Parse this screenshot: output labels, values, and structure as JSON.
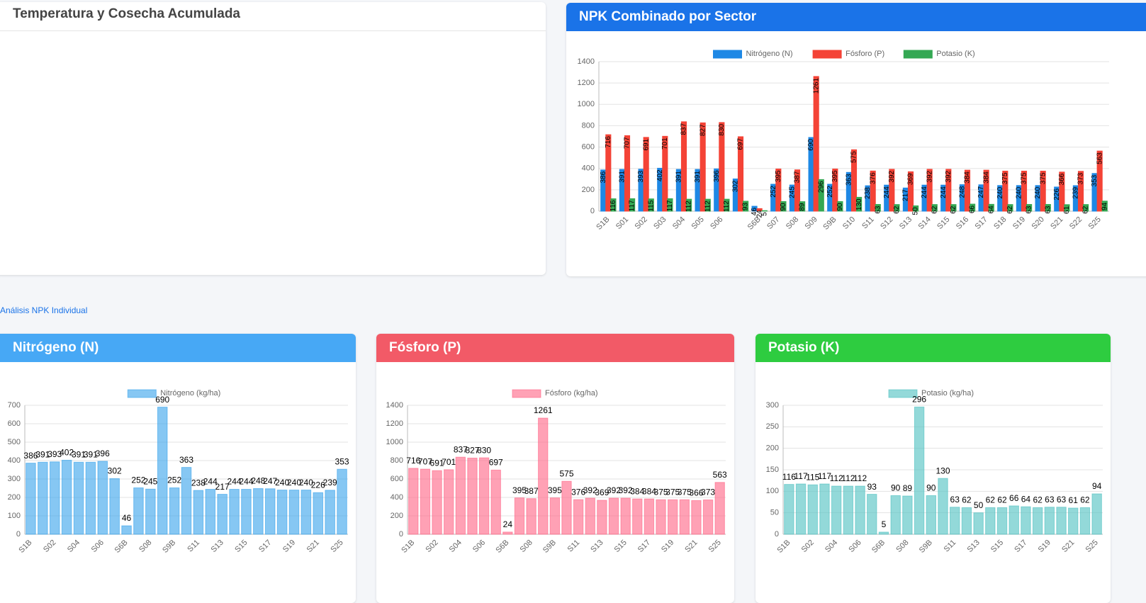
{
  "page": {
    "temp_title": "Temperatura y Cosecha Acumulada",
    "section_link": "Análisis NPK Individual"
  },
  "chart_data": [
    {
      "type": "bar",
      "title": "NPK Combinado por Sector",
      "header_color": "#1a73e8",
      "categories": [
        "S1B",
        "S01",
        "S02",
        "S03",
        "S04",
        "S05",
        "S06",
        null,
        "S6B",
        "S07",
        "S08",
        "S09",
        "S9B",
        "S10",
        "S11",
        "S12",
        "S13",
        "S14",
        "S15",
        "S16",
        "S17",
        "S18",
        "S19",
        "S20",
        "S21",
        "S22",
        "S25"
      ],
      "series": [
        {
          "name": "Nitrógeno (N)",
          "color": "#1e88e5",
          "values": [
            386,
            391,
            393,
            402,
            391,
            391,
            396,
            302,
            46,
            252,
            245,
            690,
            252,
            363,
            238,
            244,
            217,
            244,
            244,
            248,
            247,
            240,
            240,
            240,
            226,
            239,
            353
          ]
        },
        {
          "name": "Fósforo (P)",
          "color": "#f44336",
          "values": [
            716,
            707,
            691,
            701,
            837,
            827,
            830,
            697,
            24,
            395,
            387,
            1261,
            395,
            575,
            376,
            392,
            369,
            392,
            392,
            384,
            384,
            375,
            375,
            375,
            366,
            373,
            563
          ]
        },
        {
          "name": "Potasio (K)",
          "color": "#34a853",
          "values": [
            116,
            117,
            115,
            117,
            112,
            112,
            112,
            93,
            5,
            90,
            89,
            296,
            90,
            130,
            63,
            62,
            50,
            62,
            62,
            66,
            64,
            62,
            63,
            63,
            61,
            62,
            94
          ]
        }
      ],
      "ylim": [
        0,
        1400
      ],
      "yticks": [
        0,
        200,
        400,
        600,
        800,
        1000,
        1200,
        1400
      ],
      "grid": true,
      "label_style": "inside"
    },
    {
      "type": "bar",
      "title": "Nitrógeno (N)",
      "header_color": "#47a8f5",
      "categories": [
        "S1B",
        null,
        "S02",
        null,
        "S04",
        null,
        "S06",
        null,
        "S6B",
        null,
        "S08",
        null,
        "S9B",
        null,
        "S11",
        null,
        "S13",
        null,
        "S15",
        null,
        "S17",
        null,
        "S19",
        null,
        "S21",
        null,
        "S25"
      ],
      "series": [
        {
          "name": "Nitrógeno (kg/ha)",
          "color": "rgba(54,162,235,0.6)",
          "values": [
            386,
            391,
            393,
            402,
            391,
            391,
            396,
            302,
            46,
            252,
            245,
            690,
            252,
            363,
            238,
            244,
            217,
            244,
            244,
            248,
            247,
            240,
            240,
            240,
            226,
            239,
            353
          ]
        }
      ],
      "ylim": [
        0,
        700
      ],
      "yticks": [
        0,
        100,
        200,
        300,
        400,
        500,
        600,
        700
      ],
      "grid": true,
      "label_style": "above"
    },
    {
      "type": "bar",
      "title": "Fósforo (P)",
      "header_color": "#f25a67",
      "categories": [
        "S1B",
        null,
        "S02",
        null,
        "S04",
        null,
        "S06",
        null,
        "S6B",
        null,
        "S08",
        null,
        "S9B",
        null,
        "S11",
        null,
        "S13",
        null,
        "S15",
        null,
        "S17",
        null,
        "S19",
        null,
        "S21",
        null,
        "S25"
      ],
      "series": [
        {
          "name": "Fósforo (kg/ha)",
          "color": "rgba(255,99,132,0.6)",
          "values": [
            716,
            707,
            691,
            701,
            837,
            827,
            830,
            697,
            24,
            395,
            387,
            1261,
            395,
            575,
            376,
            392,
            369,
            392,
            392,
            384,
            384,
            375,
            375,
            375,
            366,
            373,
            563
          ]
        }
      ],
      "ylim": [
        0,
        1400
      ],
      "yticks": [
        0,
        200,
        400,
        600,
        800,
        1000,
        1200,
        1400
      ],
      "grid": true,
      "label_style": "above"
    },
    {
      "type": "bar",
      "title": "Potasio (K)",
      "header_color": "#2ecc40",
      "categories": [
        "S1B",
        null,
        "S02",
        null,
        "S04",
        null,
        "S06",
        null,
        "S6B",
        null,
        "S08",
        null,
        "S9B",
        null,
        "S11",
        null,
        "S13",
        null,
        "S15",
        null,
        "S17",
        null,
        "S19",
        null,
        "S21",
        null,
        "S25"
      ],
      "series": [
        {
          "name": "Potasio (kg/ha)",
          "color": "rgba(75,192,192,0.6)",
          "values": [
            116,
            117,
            115,
            117,
            112,
            112,
            112,
            93,
            5,
            90,
            89,
            296,
            90,
            130,
            63,
            62,
            50,
            62,
            62,
            66,
            64,
            62,
            63,
            63,
            61,
            62,
            94
          ]
        }
      ],
      "ylim": [
        0,
        300
      ],
      "yticks": [
        0,
        50,
        100,
        150,
        200,
        250,
        300
      ],
      "grid": true,
      "label_style": "above"
    }
  ]
}
